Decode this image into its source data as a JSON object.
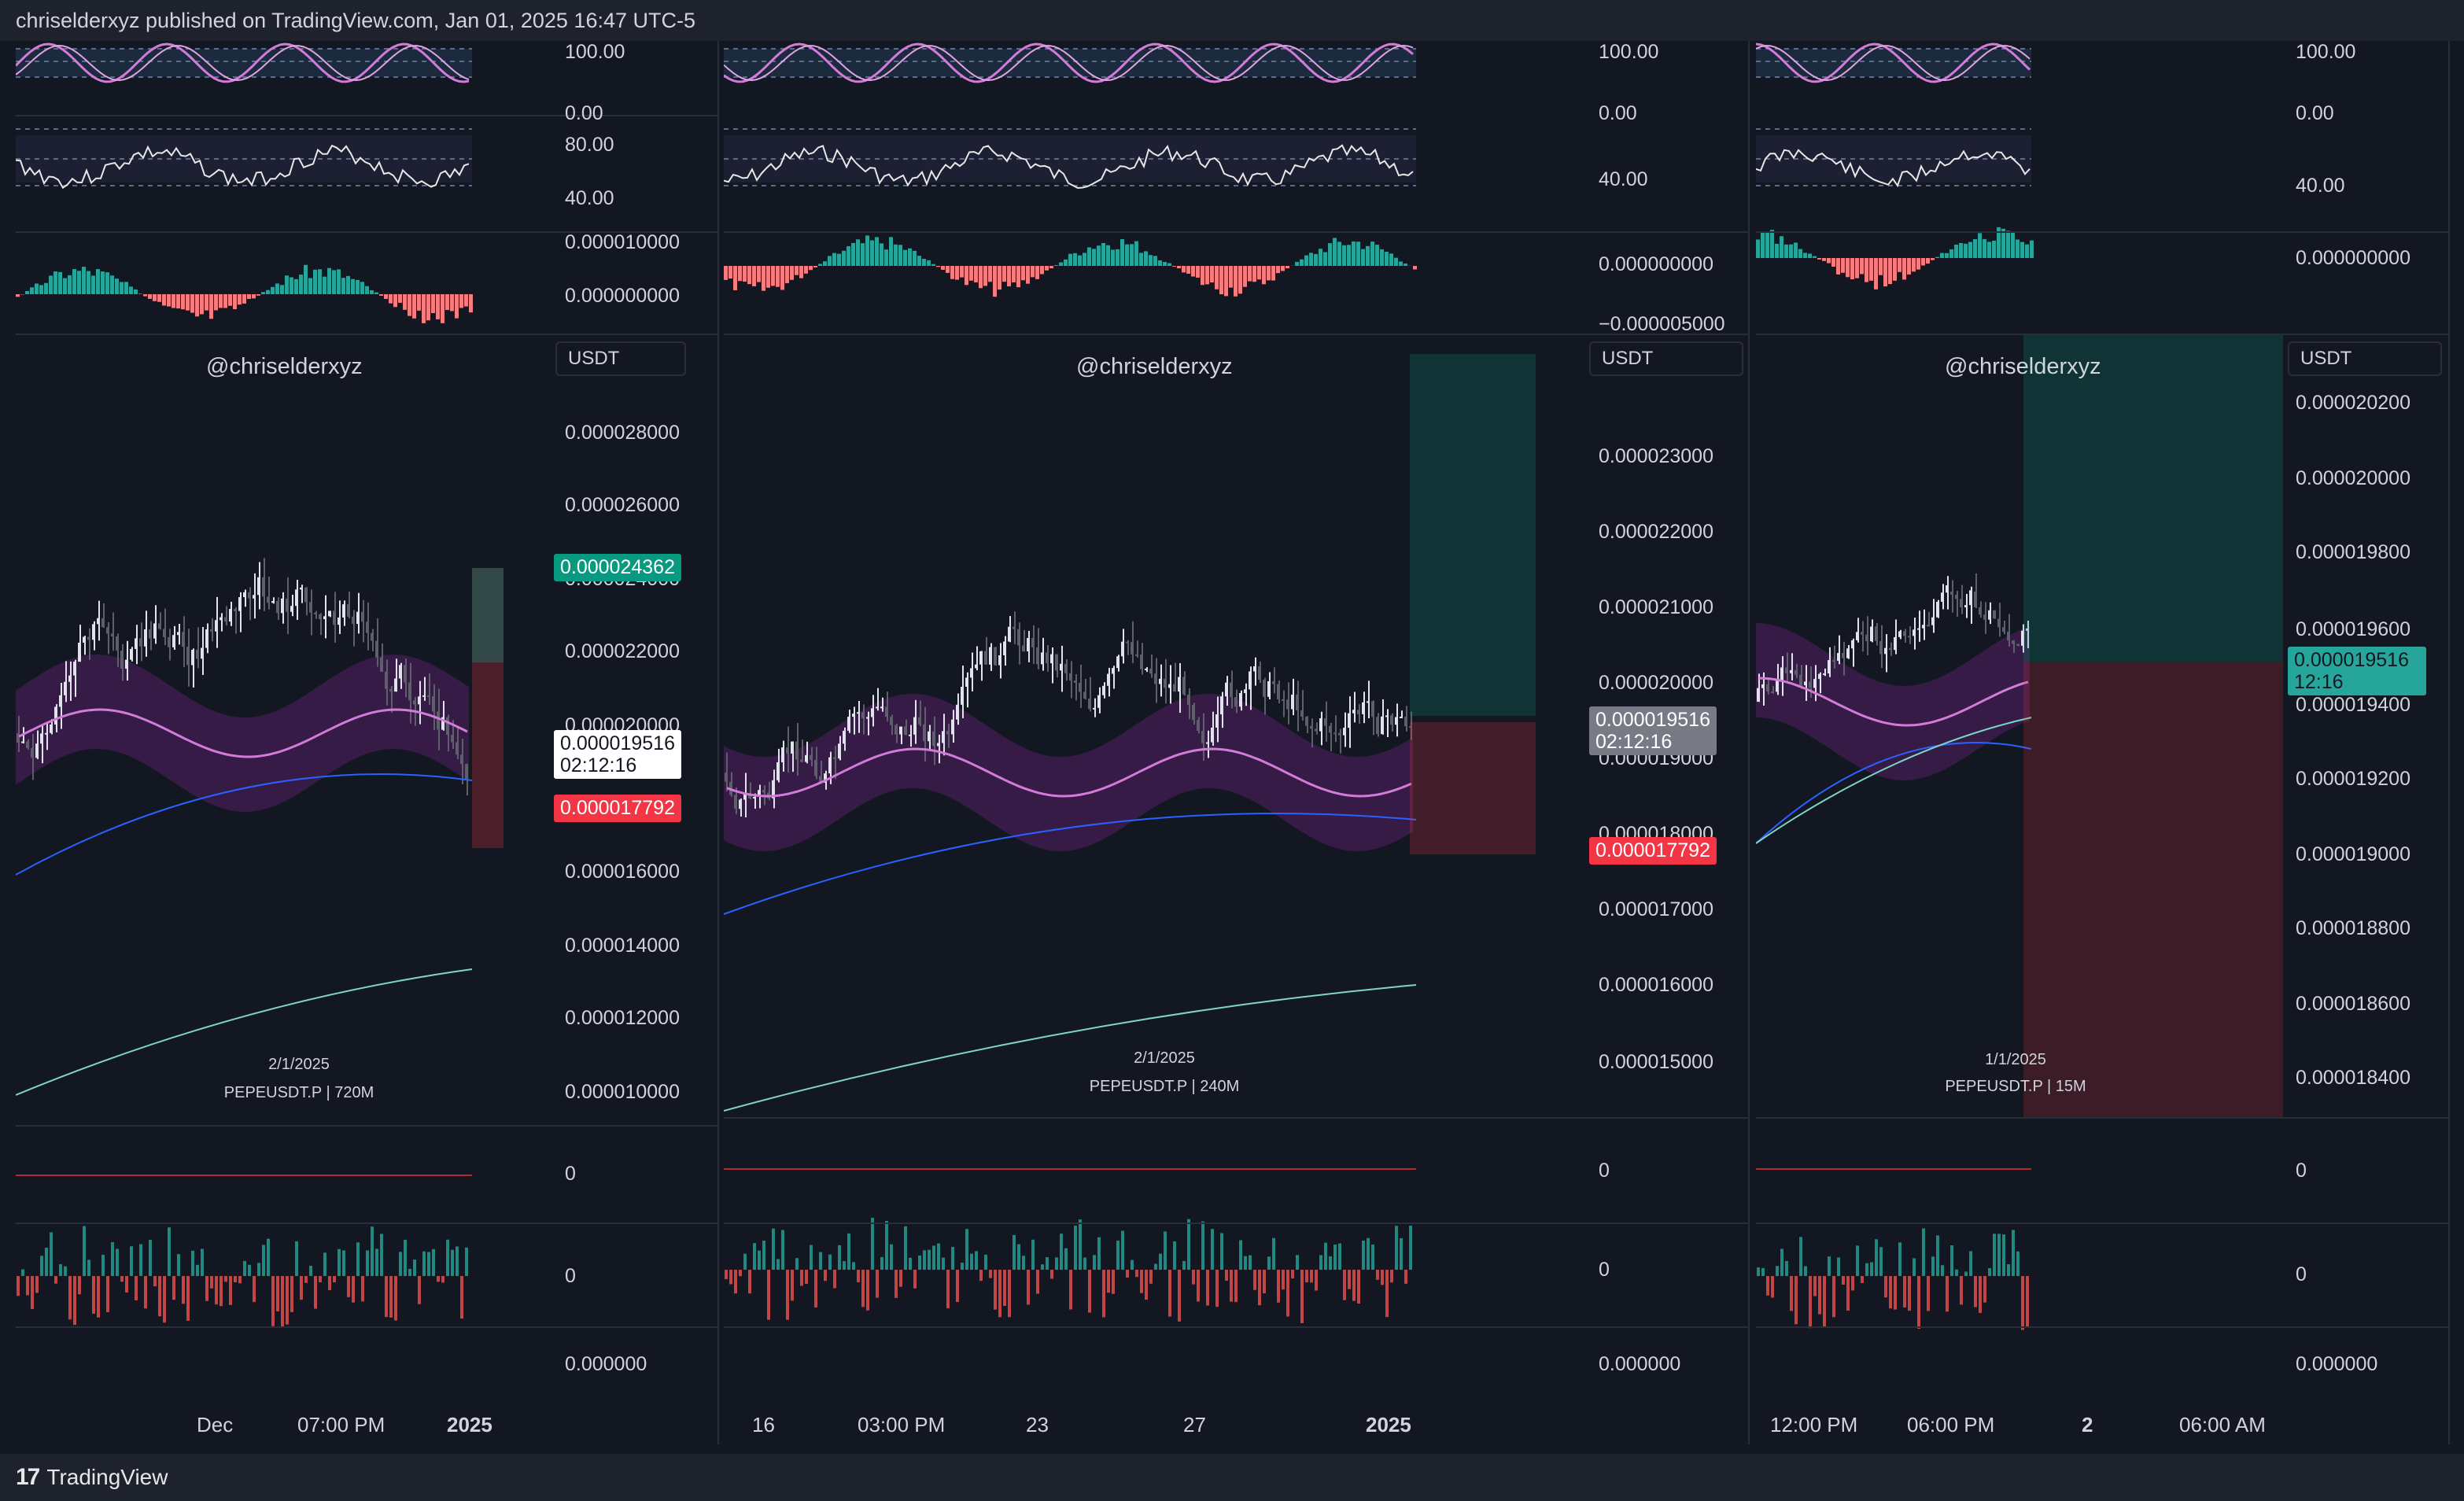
{
  "header": {
    "published_text": "chriselderxyz published on TradingView.com, Jan 01, 2025 16:47 UTC-5"
  },
  "footer": {
    "brand_name": "TradingView",
    "brand_icon": "tradingview-logo-icon"
  },
  "colors": {
    "background": "#131722",
    "up": "#26a69a",
    "down": "#ef5350",
    "separator": "#2a2e39"
  },
  "panels": [
    {
      "watermark": "@chriselderxyz",
      "currency": "USDT",
      "symbol_date": "2/1/2025",
      "symbol": "PEPEUSDT.P | 720M",
      "stoch_axis": [
        "100.00",
        "0.00"
      ],
      "rsi_axis": [
        "80.00",
        "40.00"
      ],
      "macd_axis": [
        "0.000010000",
        "0.000000000"
      ],
      "price_axis": [
        "0.000028000",
        "0.000026000",
        "0.000024000",
        "0.000022000",
        "0.000020000",
        "0.000016000",
        "0.000014000",
        "0.000012000",
        "0.000010000"
      ],
      "tag_green": "0.000024362",
      "tag_current": "0.000019516",
      "tag_countdown": "02:12:16",
      "tag_red": "0.000017792",
      "sub1_axis": "0",
      "sub2_axis": "0",
      "sub3_axis": "0.000000",
      "time_labels": [
        "Dec",
        "07:00 PM",
        "2025"
      ]
    },
    {
      "watermark": "@chriselderxyz",
      "currency": "USDT",
      "symbol_date": "2/1/2025",
      "symbol": "PEPEUSDT.P | 240M",
      "stoch_axis": [
        "100.00",
        "0.00"
      ],
      "rsi_axis": [
        "40.00"
      ],
      "macd_axis": [
        "0.000000000",
        "−0.000005000"
      ],
      "price_axis": [
        "0.000023000",
        "0.000022000",
        "0.000021000",
        "0.000020000",
        "0.000019000",
        "0.000018000",
        "0.000017000",
        "0.000016000",
        "0.000015000"
      ],
      "tag_current": "0.000019516",
      "tag_countdown": "02:12:16",
      "tag_red": "0.000017792",
      "sub1_axis": "0",
      "sub2_axis": "0",
      "sub3_axis": "0.000000",
      "time_labels": [
        "16",
        "03:00 PM",
        "23",
        "27",
        "2025"
      ]
    },
    {
      "watermark": "@chriselderxyz",
      "currency": "USDT",
      "symbol_date": "1/1/2025",
      "symbol": "PEPEUSDT.P | 15M",
      "stoch_axis": [
        "100.00",
        "0.00"
      ],
      "rsi_axis": [
        "40.00"
      ],
      "macd_axis": [
        "0.000000000"
      ],
      "price_axis": [
        "0.000020200",
        "0.000020000",
        "0.000019800",
        "0.000019600",
        "0.000019400",
        "0.000019200",
        "0.000019000",
        "0.000018800",
        "0.000018600",
        "0.000018400"
      ],
      "tag_current": "0.000019516",
      "tag_countdown": "12:16",
      "sub1_axis": "0",
      "sub2_axis": "0",
      "sub3_axis": "0.000000",
      "time_labels": [
        "12:00 PM",
        "06:00 PM",
        "2",
        "06:00 AM"
      ]
    }
  ]
}
